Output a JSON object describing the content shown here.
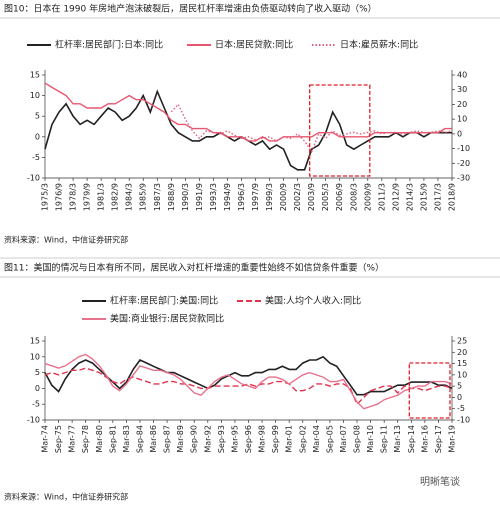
{
  "chart_data": [
    {
      "type": "line",
      "title": "图10：日本在 1990 年房地产泡沫破裂后，居民杠杆率增速由负债驱动转向了收入驱动（%）",
      "source": "资料来源：Wind，中信证券研究部",
      "categories": [
        "1975/3",
        null,
        "1976/9",
        null,
        "1978/3",
        null,
        "1979/9",
        null,
        "1981/3",
        null,
        "1982/9",
        null,
        "1984/3",
        null,
        "1985/9",
        null,
        "1987/3",
        null,
        "1988/9",
        null,
        "1990/3",
        null,
        "1991/9",
        null,
        "1993/3",
        null,
        "1994/9",
        null,
        "1996/3",
        null,
        "1997/9",
        null,
        "1999/3",
        null,
        "2000/9",
        null,
        "2002/3",
        null,
        "2003/9",
        null,
        "2005/3",
        null,
        "2006/9",
        null,
        "2008/3",
        null,
        "2009/9",
        null,
        "2011/3",
        null,
        "2012/9",
        null,
        "2014/3",
        null,
        "2015/9",
        null,
        "2017/3",
        null,
        "2018/9"
      ],
      "series": [
        {
          "name": "杠杆率:居民部门:日本:同比",
          "color": "#222222",
          "linestyle": "solid",
          "values": [
            -3,
            3,
            6,
            8,
            5,
            3,
            4,
            3,
            5,
            7,
            6,
            4,
            5,
            7,
            10,
            6,
            11,
            7,
            3,
            1,
            0,
            -1,
            -1,
            0,
            0,
            1,
            0,
            -1,
            0,
            -1,
            -2,
            -1,
            -3,
            -2,
            -3,
            -7,
            -8,
            -8,
            -3,
            -2,
            1,
            6,
            3,
            -2,
            -3,
            -2,
            -1,
            0,
            0,
            0,
            1,
            0,
            1,
            1,
            0,
            1,
            1,
            1,
            1
          ]
        },
        {
          "name": "日本:居民贷款:同比",
          "color": "#e8566f",
          "linestyle": "solid",
          "values": [
            13,
            12,
            11,
            10,
            8,
            8,
            7,
            7,
            7,
            8,
            8,
            9,
            10,
            9,
            9,
            8,
            7,
            6,
            4,
            3,
            3,
            2,
            2,
            2,
            1,
            1,
            0,
            0,
            0,
            -1,
            -1,
            0,
            -1,
            -1,
            0,
            0,
            0,
            0,
            0,
            1,
            1,
            1,
            0,
            0,
            0,
            0,
            0,
            1,
            1,
            1,
            1,
            1,
            1,
            1,
            1,
            1,
            1,
            2,
            2
          ]
        },
        {
          "name": "日本:雇员薪水:同比",
          "color": "#e2607e",
          "linestyle": "dotted",
          "axis": "y2",
          "values": [
            null,
            null,
            null,
            null,
            null,
            null,
            null,
            null,
            null,
            null,
            null,
            null,
            null,
            null,
            null,
            null,
            null,
            null,
            15,
            20,
            10,
            2,
            -3,
            2,
            1,
            0,
            2,
            -1,
            -3,
            -2,
            -4,
            -3,
            -2,
            -5,
            -2,
            -3,
            0,
            -5,
            -12,
            0,
            -3,
            2,
            -1,
            0,
            1,
            0,
            1,
            2,
            0,
            1,
            1,
            0,
            1,
            2,
            1,
            1,
            2,
            1,
            2
          ]
        }
      ],
      "ylim": [
        -10,
        15
      ],
      "yticks": [
        -10,
        -5,
        0,
        5,
        10,
        15
      ],
      "y2lim": [
        -30,
        40
      ],
      "y2ticks": [
        -30,
        -20,
        -10,
        0,
        10,
        20,
        30,
        40
      ],
      "grid": false
    },
    {
      "type": "line",
      "title": "图11：美国的情况与日本有所不同，居民收入对杠杆增速的重要性始终不如信贷条件重要（%）",
      "source": "资料来源：Wind，中信证券研究部",
      "categories": [
        "Mar-74",
        null,
        "Sep-75",
        null,
        "Mar-77",
        null,
        "Sep-78",
        null,
        "Mar-80",
        null,
        "Sep-81",
        null,
        "Mar-83",
        null,
        "Sep-84",
        null,
        "Mar-86",
        null,
        "Sep-87",
        null,
        "Mar-89",
        null,
        "Sep-90",
        null,
        "Mar-92",
        null,
        "Sep-93",
        null,
        "Mar-95",
        null,
        "Sep-96",
        null,
        "Mar-98",
        null,
        "Sep-99",
        null,
        "Mar-01",
        null,
        "Sep-02",
        null,
        "Mar-04",
        null,
        "Sep-05",
        null,
        "Mar-07",
        null,
        "Sep-08",
        null,
        "Mar-10",
        null,
        "Sep-11",
        null,
        "Mar-13",
        null,
        "Sep-14",
        null,
        "Mar-16",
        null,
        "Sep-17",
        null,
        "Mar-19"
      ],
      "series": [
        {
          "name": "杠杆率:居民部门:美国:同比",
          "color": "#222222",
          "linestyle": "solid",
          "values": [
            5,
            1,
            -1,
            3,
            6,
            8,
            9,
            8,
            6,
            4,
            2,
            0,
            2,
            6,
            9,
            8,
            7,
            6,
            5,
            5,
            4,
            3,
            2,
            1,
            0,
            1,
            3,
            4,
            5,
            4,
            4,
            5,
            5,
            6,
            6,
            7,
            6,
            6,
            8,
            9,
            9,
            10,
            8,
            7,
            4,
            1,
            -2,
            -2,
            -1,
            -1,
            -1,
            0,
            1,
            1,
            2,
            2,
            2,
            2,
            1,
            1,
            0
          ]
        },
        {
          "name": "美国:人均个人收入:同比",
          "color": "#e0344e",
          "linestyle": "dashed",
          "axis": "y2",
          "values": [
            10,
            11,
            10,
            11,
            12,
            12,
            13,
            12,
            11,
            9,
            7,
            6,
            8,
            9,
            8,
            7,
            6,
            6,
            7,
            7,
            6,
            6,
            5,
            4,
            4,
            5,
            5,
            5,
            5,
            5,
            6,
            5,
            6,
            6,
            7,
            7,
            6,
            3,
            3,
            4,
            6,
            6,
            5,
            6,
            6,
            4,
            -3,
            0,
            3,
            4,
            5,
            5,
            2,
            5,
            4,
            4,
            3,
            4,
            5,
            5,
            4
          ]
        },
        {
          "name": "美国:商业银行:居民贷款同比",
          "color": "#e8728c",
          "linestyle": "solid",
          "axis": "y2",
          "values": [
            15,
            14,
            13,
            14,
            16,
            18,
            19,
            17,
            14,
            10,
            5,
            3,
            6,
            10,
            14,
            13,
            12,
            12,
            11,
            10,
            8,
            5,
            2,
            1,
            4,
            7,
            9,
            10,
            8,
            6,
            5,
            4,
            7,
            9,
            9,
            8,
            6,
            8,
            10,
            11,
            10,
            9,
            7,
            7,
            8,
            3,
            -2,
            -5,
            -4,
            -3,
            -1,
            0,
            1,
            3,
            4,
            5,
            5,
            7,
            7,
            7,
            6
          ]
        }
      ],
      "ylim": [
        -10,
        15
      ],
      "yticks": [
        -10,
        -5,
        0,
        5,
        10,
        15
      ],
      "y2lim": [
        -10,
        25
      ],
      "y2ticks": [
        -10,
        -5,
        0,
        5,
        10,
        15,
        20,
        25
      ],
      "grid": false
    }
  ],
  "watermark": "明晰笔谈"
}
